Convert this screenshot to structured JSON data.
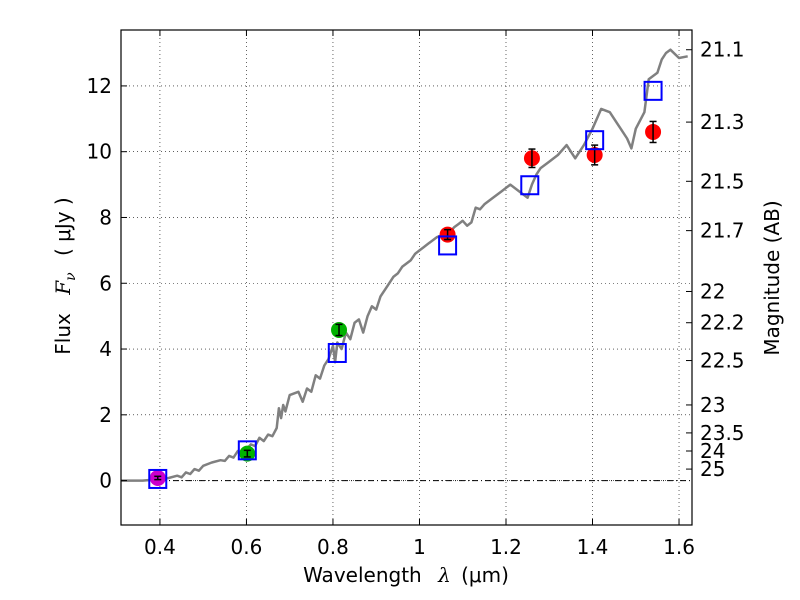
{
  "chart_data": {
    "type": "scatter",
    "xlabel": {
      "prefix": "Wavelength",
      "symbol": "λ",
      "unit": "(μm)"
    },
    "ylabel": {
      "prefix": "Flux",
      "symbol": "F",
      "subscript": "ν",
      "unit": "( μJy )"
    },
    "y2label": "Magnitude (AB)",
    "xlim": [
      0.31,
      1.63
    ],
    "ylim": [
      -1.35,
      13.7
    ],
    "grid": true,
    "x_ticks": [
      0.4,
      0.6,
      0.8,
      1,
      1.2,
      1.4,
      1.6
    ],
    "x_tick_labels": [
      "0.4",
      "0.6",
      "0.8",
      "1",
      "1.2",
      "1.4",
      "1.6"
    ],
    "y_ticks": [
      0,
      2,
      4,
      6,
      8,
      10,
      12
    ],
    "y_tick_labels": [
      "0",
      "2",
      "4",
      "6",
      "8",
      "10",
      "12"
    ],
    "mag_ticks": [
      {
        "label": "21.1",
        "flux": 13.1
      },
      {
        "label": "21.3",
        "flux": 10.9
      },
      {
        "label": "21.5",
        "flux": 9.1
      },
      {
        "label": "21.7",
        "flux": 7.6
      },
      {
        "label": "22",
        "flux": 5.75
      },
      {
        "label": "22.2",
        "flux": 4.8
      },
      {
        "label": "22.5",
        "flux": 3.65
      },
      {
        "label": "23",
        "flux": 2.3
      },
      {
        "label": "23.5",
        "flux": 1.45
      },
      {
        "label": "24",
        "flux": 0.9
      },
      {
        "label": "25",
        "flux": 0.35
      }
    ],
    "model_sed": {
      "name": "model SED",
      "color": "#808080",
      "points": [
        [
          0.31,
          0.0
        ],
        [
          0.36,
          0.0
        ],
        [
          0.38,
          0.02
        ],
        [
          0.4,
          0.05
        ],
        [
          0.42,
          0.08
        ],
        [
          0.44,
          0.15
        ],
        [
          0.45,
          0.1
        ],
        [
          0.46,
          0.25
        ],
        [
          0.47,
          0.2
        ],
        [
          0.48,
          0.35
        ],
        [
          0.49,
          0.3
        ],
        [
          0.5,
          0.45
        ],
        [
          0.52,
          0.55
        ],
        [
          0.54,
          0.62
        ],
        [
          0.55,
          0.6
        ],
        [
          0.56,
          0.75
        ],
        [
          0.57,
          0.7
        ],
        [
          0.58,
          0.9
        ],
        [
          0.59,
          0.85
        ],
        [
          0.6,
          0.95
        ],
        [
          0.61,
          1.1
        ],
        [
          0.62,
          1.05
        ],
        [
          0.63,
          1.3
        ],
        [
          0.64,
          1.2
        ],
        [
          0.65,
          1.4
        ],
        [
          0.66,
          1.35
        ],
        [
          0.67,
          1.6
        ],
        [
          0.675,
          2.2
        ],
        [
          0.68,
          1.9
        ],
        [
          0.685,
          2.3
        ],
        [
          0.69,
          2.1
        ],
        [
          0.7,
          2.6
        ],
        [
          0.72,
          2.7
        ],
        [
          0.73,
          2.4
        ],
        [
          0.74,
          2.8
        ],
        [
          0.75,
          2.7
        ],
        [
          0.76,
          3.2
        ],
        [
          0.77,
          3.1
        ],
        [
          0.78,
          3.5
        ],
        [
          0.79,
          3.7
        ],
        [
          0.8,
          4.1
        ],
        [
          0.805,
          3.6
        ],
        [
          0.81,
          4.2
        ],
        [
          0.82,
          4.0
        ],
        [
          0.83,
          4.5
        ],
        [
          0.84,
          4.3
        ],
        [
          0.85,
          4.8
        ],
        [
          0.86,
          4.9
        ],
        [
          0.87,
          4.5
        ],
        [
          0.88,
          5.0
        ],
        [
          0.89,
          5.3
        ],
        [
          0.9,
          5.2
        ],
        [
          0.91,
          5.6
        ],
        [
          0.92,
          5.8
        ],
        [
          0.93,
          6.0
        ],
        [
          0.94,
          6.2
        ],
        [
          0.95,
          6.3
        ],
        [
          0.96,
          6.5
        ],
        [
          0.97,
          6.6
        ],
        [
          0.98,
          6.7
        ],
        [
          0.99,
          6.9
        ],
        [
          1.0,
          7.0
        ],
        [
          1.01,
          7.1
        ],
        [
          1.02,
          7.2
        ],
        [
          1.03,
          7.3
        ],
        [
          1.04,
          7.4
        ],
        [
          1.05,
          7.45
        ],
        [
          1.07,
          7.55
        ],
        [
          1.08,
          7.7
        ],
        [
          1.09,
          7.8
        ],
        [
          1.1,
          7.9
        ],
        [
          1.11,
          7.75
        ],
        [
          1.12,
          7.85
        ],
        [
          1.13,
          8.3
        ],
        [
          1.14,
          8.25
        ],
        [
          1.15,
          8.4
        ],
        [
          1.17,
          8.6
        ],
        [
          1.19,
          8.8
        ],
        [
          1.21,
          9.0
        ],
        [
          1.23,
          8.8
        ],
        [
          1.25,
          8.6
        ],
        [
          1.26,
          9.0
        ],
        [
          1.27,
          9.3
        ],
        [
          1.28,
          9.5
        ],
        [
          1.3,
          9.7
        ],
        [
          1.32,
          9.9
        ],
        [
          1.34,
          10.2
        ],
        [
          1.36,
          9.8
        ],
        [
          1.38,
          10.2
        ],
        [
          1.4,
          10.7
        ],
        [
          1.42,
          11.3
        ],
        [
          1.44,
          11.2
        ],
        [
          1.46,
          10.8
        ],
        [
          1.48,
          10.4
        ],
        [
          1.49,
          10.1
        ],
        [
          1.5,
          10.7
        ],
        [
          1.52,
          11.2
        ],
        [
          1.53,
          12.2
        ],
        [
          1.55,
          12.4
        ],
        [
          1.56,
          12.8
        ],
        [
          1.57,
          13.0
        ],
        [
          1.58,
          13.1
        ],
        [
          1.6,
          12.85
        ],
        [
          1.62,
          12.9
        ]
      ]
    },
    "series": [
      {
        "name": "magenta point",
        "color": "#cc00cc",
        "points": [
          {
            "x": 0.395,
            "y": 0.08,
            "err": 0.05
          }
        ]
      },
      {
        "name": "green points",
        "color": "#00b200",
        "points": [
          {
            "x": 0.602,
            "y": 0.82,
            "err": 0.1
          },
          {
            "x": 0.814,
            "y": 4.58,
            "err": 0.17
          }
        ]
      },
      {
        "name": "red points",
        "color": "#ff0000",
        "points": [
          {
            "x": 1.065,
            "y": 7.48,
            "err": 0.15
          },
          {
            "x": 1.26,
            "y": 9.8,
            "err": 0.28
          },
          {
            "x": 1.405,
            "y": 9.9,
            "err": 0.3
          },
          {
            "x": 1.54,
            "y": 10.6,
            "err": 0.32
          }
        ]
      },
      {
        "name": "model band fluxes",
        "color": "#0000ff",
        "marker": "open-square",
        "points": [
          {
            "x": 0.395,
            "y": 0.05
          },
          {
            "x": 0.602,
            "y": 0.92
          },
          {
            "x": 0.81,
            "y": 3.88
          },
          {
            "x": 1.065,
            "y": 7.15
          },
          {
            "x": 1.255,
            "y": 8.98
          },
          {
            "x": 1.405,
            "y": 10.35
          },
          {
            "x": 1.54,
            "y": 11.85
          }
        ]
      }
    ]
  }
}
